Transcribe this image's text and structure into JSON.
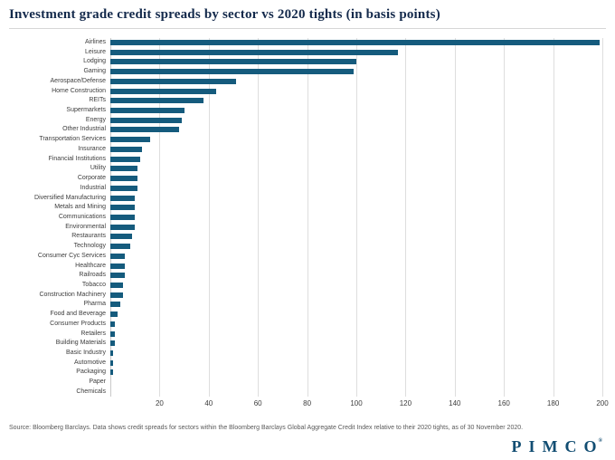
{
  "colors": {
    "bar": "#155b7d",
    "grid": "#dedede",
    "title": "#13294b",
    "logo": "#114d72"
  },
  "footer": {
    "source": "Source: Bloomberg Barclays. Data shows credit spreads for sectors within the Bloomberg Barclays Global Aggregate Credit Index relative to their 2020 tights, as of 30 November 2020.",
    "logo": "PIMCO",
    "logo_reg": "®"
  },
  "chart_data": {
    "type": "bar",
    "orientation": "horizontal",
    "title": "Investment grade credit spreads by sector vs 2020 tights (in basis points)",
    "xlabel": "",
    "ylabel": "",
    "xlim": [
      0,
      200
    ],
    "xticks": [
      20,
      40,
      60,
      80,
      100,
      120,
      140,
      160,
      180,
      200
    ],
    "grid": true,
    "legend": false,
    "categories": [
      "Airlines",
      "Leisure",
      "Lodging",
      "Gaming",
      "Aerospace/Defense",
      "Home Construction",
      "REITs",
      "Supermarkets",
      "Energy",
      "Other Industrial",
      "Transportation Services",
      "Insurance",
      "Financial Institutions",
      "Utility",
      "Corporate",
      "Industrial",
      "Diversified Manufacturing",
      "Metals and Mining",
      "Communications",
      "Environmental",
      "Restaurants",
      "Technology",
      "Consumer Cyc Services",
      "Healthcare",
      "Railroads",
      "Tobacco",
      "Construction Machinery",
      "Pharma",
      "Food and Beverage",
      "Consumer Products",
      "Retailers",
      "Building Materials",
      "Basic Industry",
      "Automotive",
      "Packaging",
      "Paper",
      "Chemicals"
    ],
    "values": [
      199,
      117,
      100,
      99,
      51,
      43,
      38,
      30,
      29,
      28,
      16,
      13,
      12,
      11,
      11,
      11,
      10,
      10,
      10,
      10,
      9,
      8,
      6,
      6,
      6,
      5,
      5,
      4,
      3,
      2,
      2,
      2,
      1,
      1,
      1,
      0,
      0
    ]
  }
}
